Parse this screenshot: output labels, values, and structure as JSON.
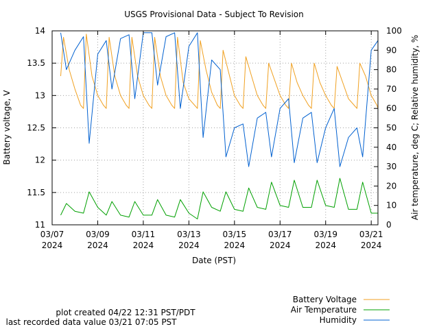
{
  "chart_data": {
    "type": "line",
    "title": "USGS Provisional Data - Subject To Revision",
    "xlabel": "Date (PST)",
    "ylabel_left": "Battery voltage, V",
    "ylabel_right": "Air temperature, deg C; Relative humidity, %",
    "x_range": [
      "2024-03-07",
      "2024-03-21 07:05"
    ],
    "x_ticks": [
      {
        "date": "2024-03-07",
        "line1": "03/07",
        "line2": "2024"
      },
      {
        "date": "2024-03-09",
        "line1": "03/09",
        "line2": "2024"
      },
      {
        "date": "2024-03-11",
        "line1": "03/11",
        "line2": "2024"
      },
      {
        "date": "2024-03-13",
        "line1": "03/13",
        "line2": "2024"
      },
      {
        "date": "2024-03-15",
        "line1": "03/15",
        "line2": "2024"
      },
      {
        "date": "2024-03-17",
        "line1": "03/17",
        "line2": "2024"
      },
      {
        "date": "2024-03-19",
        "line1": "03/19",
        "line2": "2024"
      },
      {
        "date": "2024-03-21",
        "line1": "03/21",
        "line2": "2024"
      }
    ],
    "y_left": {
      "min": 11,
      "max": 14,
      "ticks": [
        "11",
        "11.5",
        "12",
        "12.5",
        "13",
        "13.5",
        "14"
      ]
    },
    "y_right": {
      "min": 0,
      "max": 100,
      "ticks": [
        "0",
        "10",
        "20",
        "30",
        "40",
        "50",
        "60",
        "70",
        "80",
        "90",
        "100"
      ]
    },
    "grid": true,
    "legend_position": "bottom-right",
    "series": [
      {
        "name": "Battery Voltage",
        "axis": "left",
        "color": "#f0a020",
        "x": [
          "2024-03-07 09:00",
          "2024-03-07 12:00",
          "2024-03-07 18:00",
          "2024-03-08 00:00",
          "2024-03-08 06:00",
          "2024-03-08 09:00",
          "2024-03-08 12:00",
          "2024-03-08 18:00",
          "2024-03-09 00:00",
          "2024-03-09 06:00",
          "2024-03-09 09:00",
          "2024-03-09 12:00",
          "2024-03-09 18:00",
          "2024-03-10 00:00",
          "2024-03-10 06:00",
          "2024-03-10 09:00",
          "2024-03-10 12:00",
          "2024-03-10 18:00",
          "2024-03-11 00:00",
          "2024-03-11 06:00",
          "2024-03-11 09:00",
          "2024-03-11 12:00",
          "2024-03-11 18:00",
          "2024-03-12 00:00",
          "2024-03-12 06:00",
          "2024-03-12 09:00",
          "2024-03-12 12:00",
          "2024-03-12 18:00",
          "2024-03-13 00:00",
          "2024-03-13 06:00",
          "2024-03-13 09:00",
          "2024-03-13 12:00",
          "2024-03-13 18:00",
          "2024-03-14 00:00",
          "2024-03-14 06:00",
          "2024-03-14 09:00",
          "2024-03-14 12:00",
          "2024-03-14 18:00",
          "2024-03-15 00:00",
          "2024-03-15 06:00",
          "2024-03-15 09:00",
          "2024-03-15 12:00",
          "2024-03-15 18:00",
          "2024-03-16 00:00",
          "2024-03-16 06:00",
          "2024-03-16 09:00",
          "2024-03-16 12:00",
          "2024-03-16 18:00",
          "2024-03-17 00:00",
          "2024-03-17 06:00",
          "2024-03-17 09:00",
          "2024-03-17 12:00",
          "2024-03-17 18:00",
          "2024-03-18 00:00",
          "2024-03-18 06:00",
          "2024-03-18 09:00",
          "2024-03-18 12:00",
          "2024-03-18 18:00",
          "2024-03-19 00:00",
          "2024-03-19 06:00",
          "2024-03-19 09:00",
          "2024-03-19 12:00",
          "2024-03-19 18:00",
          "2024-03-20 00:00",
          "2024-03-20 06:00",
          "2024-03-20 09:00",
          "2024-03-20 12:00",
          "2024-03-20 18:00",
          "2024-03-21 00:00",
          "2024-03-21 06:00",
          "2024-03-21 07:05"
        ],
        "y": [
          13.3,
          13.9,
          13.4,
          13.1,
          12.85,
          12.8,
          13.95,
          13.3,
          13.0,
          12.85,
          12.8,
          13.9,
          13.3,
          13.0,
          12.85,
          12.8,
          13.9,
          13.3,
          13.0,
          12.85,
          12.8,
          13.9,
          13.3,
          13.0,
          12.85,
          12.8,
          13.9,
          13.2,
          12.95,
          12.85,
          12.8,
          13.85,
          13.4,
          13.05,
          12.85,
          12.8,
          13.7,
          13.35,
          13.0,
          12.85,
          12.8,
          13.6,
          13.3,
          13.0,
          12.85,
          12.8,
          13.5,
          13.25,
          13.0,
          12.85,
          12.8,
          13.5,
          13.2,
          13.0,
          12.85,
          12.8,
          13.5,
          13.2,
          13.0,
          12.85,
          12.8,
          13.45,
          13.2,
          12.95,
          12.85,
          12.8,
          13.5,
          13.3,
          13.0,
          12.85,
          12.8
        ]
      },
      {
        "name": "Air Temperature",
        "axis": "right",
        "color": "#00a000",
        "x": [
          "2024-03-07 09:00",
          "2024-03-07 15:00",
          "2024-03-08 00:00",
          "2024-03-08 09:00",
          "2024-03-08 15:00",
          "2024-03-09 00:00",
          "2024-03-09 09:00",
          "2024-03-09 15:00",
          "2024-03-10 00:00",
          "2024-03-10 09:00",
          "2024-03-10 15:00",
          "2024-03-11 00:00",
          "2024-03-11 09:00",
          "2024-03-11 15:00",
          "2024-03-12 00:00",
          "2024-03-12 09:00",
          "2024-03-12 15:00",
          "2024-03-13 00:00",
          "2024-03-13 09:00",
          "2024-03-13 15:00",
          "2024-03-14 00:00",
          "2024-03-14 09:00",
          "2024-03-14 15:00",
          "2024-03-15 00:00",
          "2024-03-15 09:00",
          "2024-03-15 15:00",
          "2024-03-16 00:00",
          "2024-03-16 09:00",
          "2024-03-16 15:00",
          "2024-03-17 00:00",
          "2024-03-17 09:00",
          "2024-03-17 15:00",
          "2024-03-18 00:00",
          "2024-03-18 09:00",
          "2024-03-18 15:00",
          "2024-03-19 00:00",
          "2024-03-19 09:00",
          "2024-03-19 15:00",
          "2024-03-20 00:00",
          "2024-03-20 09:00",
          "2024-03-20 15:00",
          "2024-03-21 00:00",
          "2024-03-21 07:05"
        ],
        "y": [
          5,
          11,
          7,
          6,
          17,
          9,
          5,
          12,
          5,
          4,
          12,
          5,
          5,
          13,
          5,
          4,
          13,
          6,
          3,
          17,
          9,
          7,
          17,
          8,
          7,
          19,
          9,
          8,
          22,
          10,
          9,
          23,
          9,
          9,
          23,
          10,
          9,
          24,
          8,
          8,
          22,
          6,
          6
        ]
      },
      {
        "name": "Humidity",
        "axis": "right",
        "color": "#0060d0",
        "x": [
          "2024-03-07 09:00",
          "2024-03-07 15:00",
          "2024-03-08 00:00",
          "2024-03-08 09:00",
          "2024-03-08 15:00",
          "2024-03-09 00:00",
          "2024-03-09 09:00",
          "2024-03-09 15:00",
          "2024-03-10 00:00",
          "2024-03-10 09:00",
          "2024-03-10 15:00",
          "2024-03-11 00:00",
          "2024-03-11 09:00",
          "2024-03-11 15:00",
          "2024-03-12 00:00",
          "2024-03-12 09:00",
          "2024-03-12 15:00",
          "2024-03-13 00:00",
          "2024-03-13 09:00",
          "2024-03-13 15:00",
          "2024-03-14 00:00",
          "2024-03-14 09:00",
          "2024-03-14 15:00",
          "2024-03-15 00:00",
          "2024-03-15 09:00",
          "2024-03-15 15:00",
          "2024-03-16 00:00",
          "2024-03-16 09:00",
          "2024-03-16 15:00",
          "2024-03-17 00:00",
          "2024-03-17 09:00",
          "2024-03-17 15:00",
          "2024-03-18 00:00",
          "2024-03-18 09:00",
          "2024-03-18 15:00",
          "2024-03-19 00:00",
          "2024-03-19 09:00",
          "2024-03-19 15:00",
          "2024-03-20 00:00",
          "2024-03-20 09:00",
          "2024-03-20 15:00",
          "2024-03-21 00:00",
          "2024-03-21 07:05"
        ],
        "y": [
          99,
          80,
          90,
          97,
          42,
          88,
          95,
          70,
          96,
          98,
          65,
          99,
          99,
          72,
          97,
          99,
          60,
          92,
          99,
          45,
          85,
          80,
          35,
          50,
          52,
          30,
          55,
          58,
          35,
          60,
          65,
          32,
          55,
          58,
          32,
          50,
          60,
          30,
          45,
          50,
          35,
          90,
          95
        ]
      }
    ]
  },
  "footer": {
    "plot_created": "plot created 04/22 12:31 PST/PDT",
    "last_recorded": "last recorded data value 03/21 07:05 PST"
  },
  "legend": {
    "items": [
      {
        "label": "Battery Voltage",
        "color": "#f0a020"
      },
      {
        "label": "Air Temperature",
        "color": "#00a000"
      },
      {
        "label": "Humidity",
        "color": "#0060d0"
      }
    ]
  }
}
